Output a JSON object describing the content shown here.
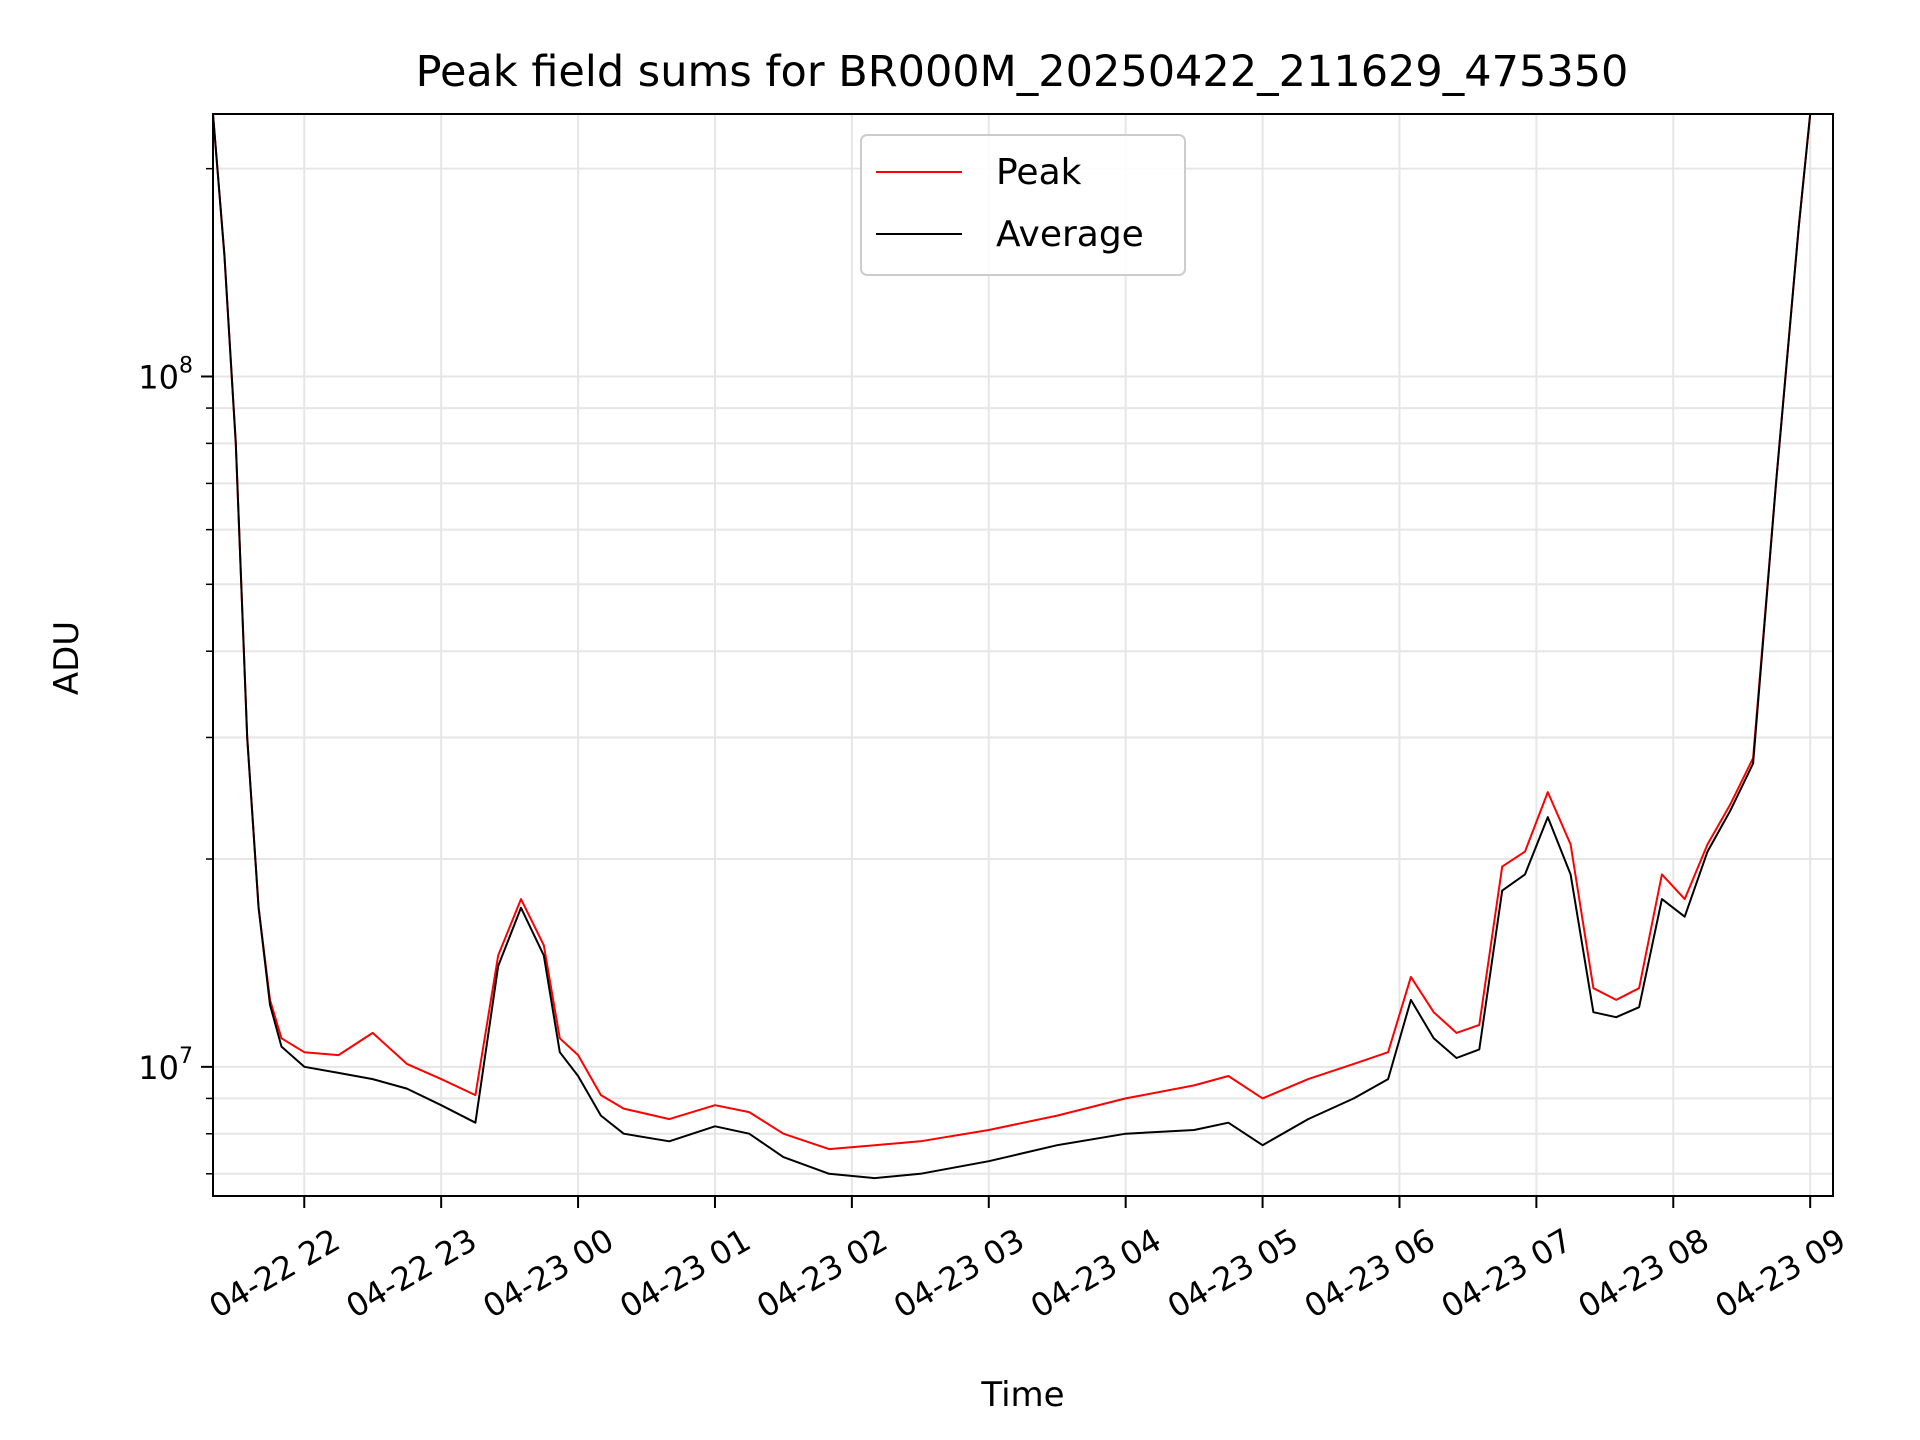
{
  "chart_data": {
    "type": "line",
    "title": "Peak field sums for BR000M_20250422_211629_475350",
    "xlabel": "Time",
    "ylabel": "ADU",
    "y_scale": "log",
    "ylim": [
      6500000,
      240000000
    ],
    "xlim": [
      "2025-04-22 21:20",
      "2025-04-23 09:10"
    ],
    "x_ticks": [
      "04-22 22",
      "04-22 23",
      "04-23 00",
      "04-23 01",
      "04-23 02",
      "04-23 03",
      "04-23 04",
      "04-23 05",
      "04-23 06",
      "04-23 07",
      "04-23 08",
      "04-23 09"
    ],
    "y_ticks": [
      {
        "value": 10000000,
        "base": "10",
        "exp": "7"
      },
      {
        "value": 100000000,
        "base": "10",
        "exp": "8"
      }
    ],
    "grid": true,
    "legend_position": "top-center",
    "colors": {
      "peak": "#ff0000",
      "average": "#000000",
      "grid": "#e6e6e6"
    },
    "series": [
      {
        "name": "Peak",
        "color": "#ff0000",
        "x": [
          "04-22 21:20",
          "04-22 21:25",
          "04-22 21:30",
          "04-22 21:35",
          "04-22 21:40",
          "04-22 21:45",
          "04-22 21:50",
          "04-22 22:00",
          "04-22 22:15",
          "04-22 22:30",
          "04-22 22:45",
          "04-22 23:00",
          "04-22 23:15",
          "04-22 23:25",
          "04-22 23:35",
          "04-22 23:45",
          "04-22 23:52",
          "04-23 00:00",
          "04-23 00:10",
          "04-23 00:20",
          "04-23 00:40",
          "04-23 01:00",
          "04-23 01:15",
          "04-23 01:30",
          "04-23 01:50",
          "04-23 02:10",
          "04-23 02:30",
          "04-23 03:00",
          "04-23 03:30",
          "04-23 04:00",
          "04-23 04:30",
          "04-23 04:45",
          "04-23 05:00",
          "04-23 05:20",
          "04-23 05:40",
          "04-23 05:55",
          "04-23 06:05",
          "04-23 06:15",
          "04-23 06:25",
          "04-23 06:35",
          "04-23 06:45",
          "04-23 06:55",
          "04-23 07:05",
          "04-23 07:15",
          "04-23 07:25",
          "04-23 07:35",
          "04-23 07:45",
          "04-23 07:55",
          "04-23 08:05",
          "04-23 08:15",
          "04-23 08:25",
          "04-23 08:35",
          "04-23 08:45",
          "04-23 08:55",
          "04-23 09:00"
        ],
        "values": [
          240000000,
          150000000,
          80000000,
          30000000,
          17000000,
          12500000,
          11000000,
          10500000,
          10400000,
          11200000,
          10100000,
          9600000,
          9100000,
          14500000,
          17500000,
          15000000,
          11000000,
          10400000,
          9100000,
          8700000,
          8400000,
          8800000,
          8600000,
          8000000,
          7600000,
          7700000,
          7800000,
          8100000,
          8500000,
          9000000,
          9400000,
          9700000,
          9000000,
          9600000,
          10100000,
          10500000,
          13500000,
          12000000,
          11200000,
          11500000,
          19500000,
          20500000,
          25000000,
          21000000,
          13000000,
          12500000,
          13000000,
          19000000,
          17500000,
          21000000,
          24000000,
          28000000,
          70000000,
          165000000,
          240000000
        ]
      },
      {
        "name": "Average",
        "color": "#000000",
        "x": [
          "04-22 21:20",
          "04-22 21:25",
          "04-22 21:30",
          "04-22 21:35",
          "04-22 21:40",
          "04-22 21:45",
          "04-22 21:50",
          "04-22 22:00",
          "04-22 22:15",
          "04-22 22:30",
          "04-22 22:45",
          "04-22 23:00",
          "04-22 23:15",
          "04-22 23:25",
          "04-22 23:35",
          "04-22 23:45",
          "04-22 23:52",
          "04-23 00:00",
          "04-23 00:10",
          "04-23 00:20",
          "04-23 00:40",
          "04-23 01:00",
          "04-23 01:15",
          "04-23 01:30",
          "04-23 01:50",
          "04-23 02:10",
          "04-23 02:30",
          "04-23 03:00",
          "04-23 03:30",
          "04-23 04:00",
          "04-23 04:30",
          "04-23 04:45",
          "04-23 05:00",
          "04-23 05:20",
          "04-23 05:40",
          "04-23 05:55",
          "04-23 06:05",
          "04-23 06:15",
          "04-23 06:25",
          "04-23 06:35",
          "04-23 06:45",
          "04-23 06:55",
          "04-23 07:05",
          "04-23 07:15",
          "04-23 07:25",
          "04-23 07:35",
          "04-23 07:45",
          "04-23 07:55",
          "04-23 08:05",
          "04-23 08:15",
          "04-23 08:25",
          "04-23 08:35",
          "04-23 08:45",
          "04-23 08:55",
          "04-23 09:00"
        ],
        "values": [
          240000000,
          150000000,
          80000000,
          30000000,
          17000000,
          12300000,
          10700000,
          10000000,
          9800000,
          9600000,
          9300000,
          8800000,
          8300000,
          14000000,
          17000000,
          14500000,
          10500000,
          9700000,
          8500000,
          8000000,
          7800000,
          8200000,
          8000000,
          7400000,
          7000000,
          6900000,
          7000000,
          7300000,
          7700000,
          8000000,
          8100000,
          8300000,
          7700000,
          8400000,
          9000000,
          9600000,
          12500000,
          11000000,
          10300000,
          10600000,
          18000000,
          19000000,
          23000000,
          19000000,
          12000000,
          11800000,
          12200000,
          17500000,
          16500000,
          20500000,
          23500000,
          27500000,
          70000000,
          165000000,
          240000000
        ]
      }
    ]
  }
}
